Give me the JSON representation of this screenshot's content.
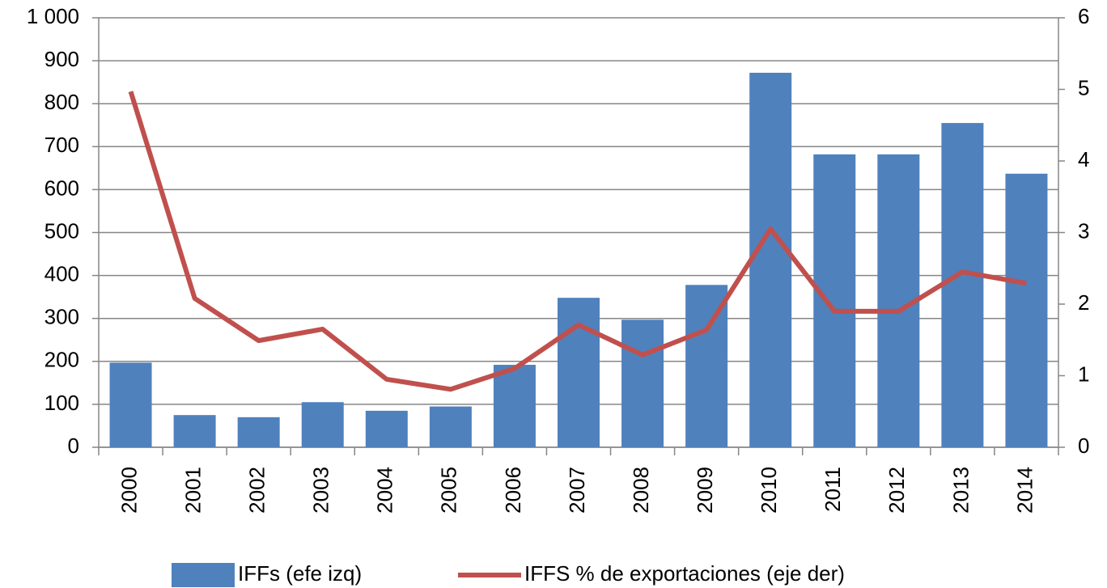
{
  "chart_data": {
    "type": "bar_line",
    "categories": [
      "2000",
      "2001",
      "2002",
      "2003",
      "2004",
      "2005",
      "2006",
      "2007",
      "2008",
      "2009",
      "2010",
      "2011",
      "2012",
      "2013",
      "2014"
    ],
    "series": [
      {
        "name": "IFFs (efe izq)",
        "type": "bar",
        "color": "#4f81bd",
        "values": [
          197,
          75,
          70,
          105,
          85,
          95,
          192,
          348,
          297,
          378,
          872,
          682,
          682,
          755,
          637
        ]
      },
      {
        "name": "IFFS % de exportaciones (eje der)",
        "type": "line",
        "axis": "y2",
        "color": "#c0504d",
        "values": [
          4.97,
          2.08,
          1.49,
          1.65,
          0.95,
          0.81,
          1.1,
          1.71,
          1.29,
          1.64,
          3.05,
          1.9,
          1.9,
          2.45,
          2.29
        ]
      }
    ],
    "ylim": [
      0,
      1000
    ],
    "yticks": [
      0,
      100,
      200,
      300,
      400,
      500,
      600,
      700,
      800,
      900,
      {
        "value": 1000,
        "label": "1 000"
      }
    ],
    "y2lim": [
      0,
      6
    ],
    "y2ticks": [
      0,
      1,
      2,
      3,
      4,
      5,
      6
    ],
    "grid": true,
    "legend": "bottom"
  }
}
